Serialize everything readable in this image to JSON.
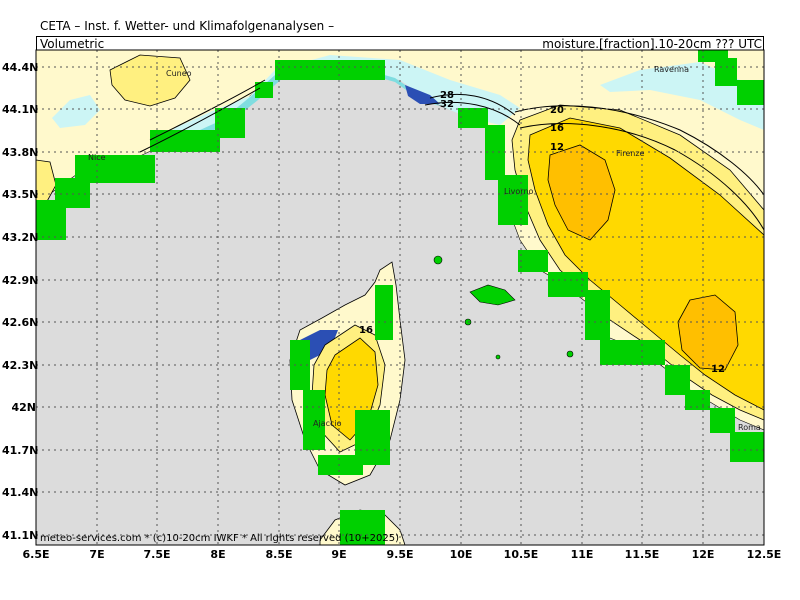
{
  "header": {
    "title": "CETA – Inst. f. Wetter- und Klimafolgenanalysen –",
    "left": "Volumetric",
    "right": "moisture.[fraction].10-20cm ??? UTC"
  },
  "footer": {
    "credit": "meteo-services.com * (c)10-20cm IWKF * All rights reserved (10+2025)"
  },
  "axes": {
    "lat_labels": [
      "44.4N",
      "44.1N",
      "43.8N",
      "43.5N",
      "43.2N",
      "42.9N",
      "42.6N",
      "42.3N",
      "42N",
      "41.7N",
      "41.4N",
      "41.1N"
    ],
    "lon_labels": [
      "6.5E",
      "7E",
      "7.5E",
      "8E",
      "8.5E",
      "9E",
      "9.5E",
      "10E",
      "10.5E",
      "11E",
      "11.5E",
      "12E",
      "12.5E"
    ]
  },
  "cities": [
    "Cuneo",
    "Ravenna",
    "Nice",
    "Firenze",
    "Livorno",
    "Ajaccio",
    "Roma"
  ],
  "contour_labels": [
    "28",
    "32",
    "20",
    "16",
    "12",
    "16",
    "12"
  ],
  "colors": {
    "sea": "#dcdcdc",
    "land_mask": "#00d000",
    "dry_light": "#fff9cc",
    "dry_mid": "#fff080",
    "dry_strong": "#ffd900",
    "dry_max": "#ffbf00",
    "wet_light": "#ccf5f5",
    "wet_mid": "#7fdde0",
    "wet_dark": "#2b4fb4"
  }
}
